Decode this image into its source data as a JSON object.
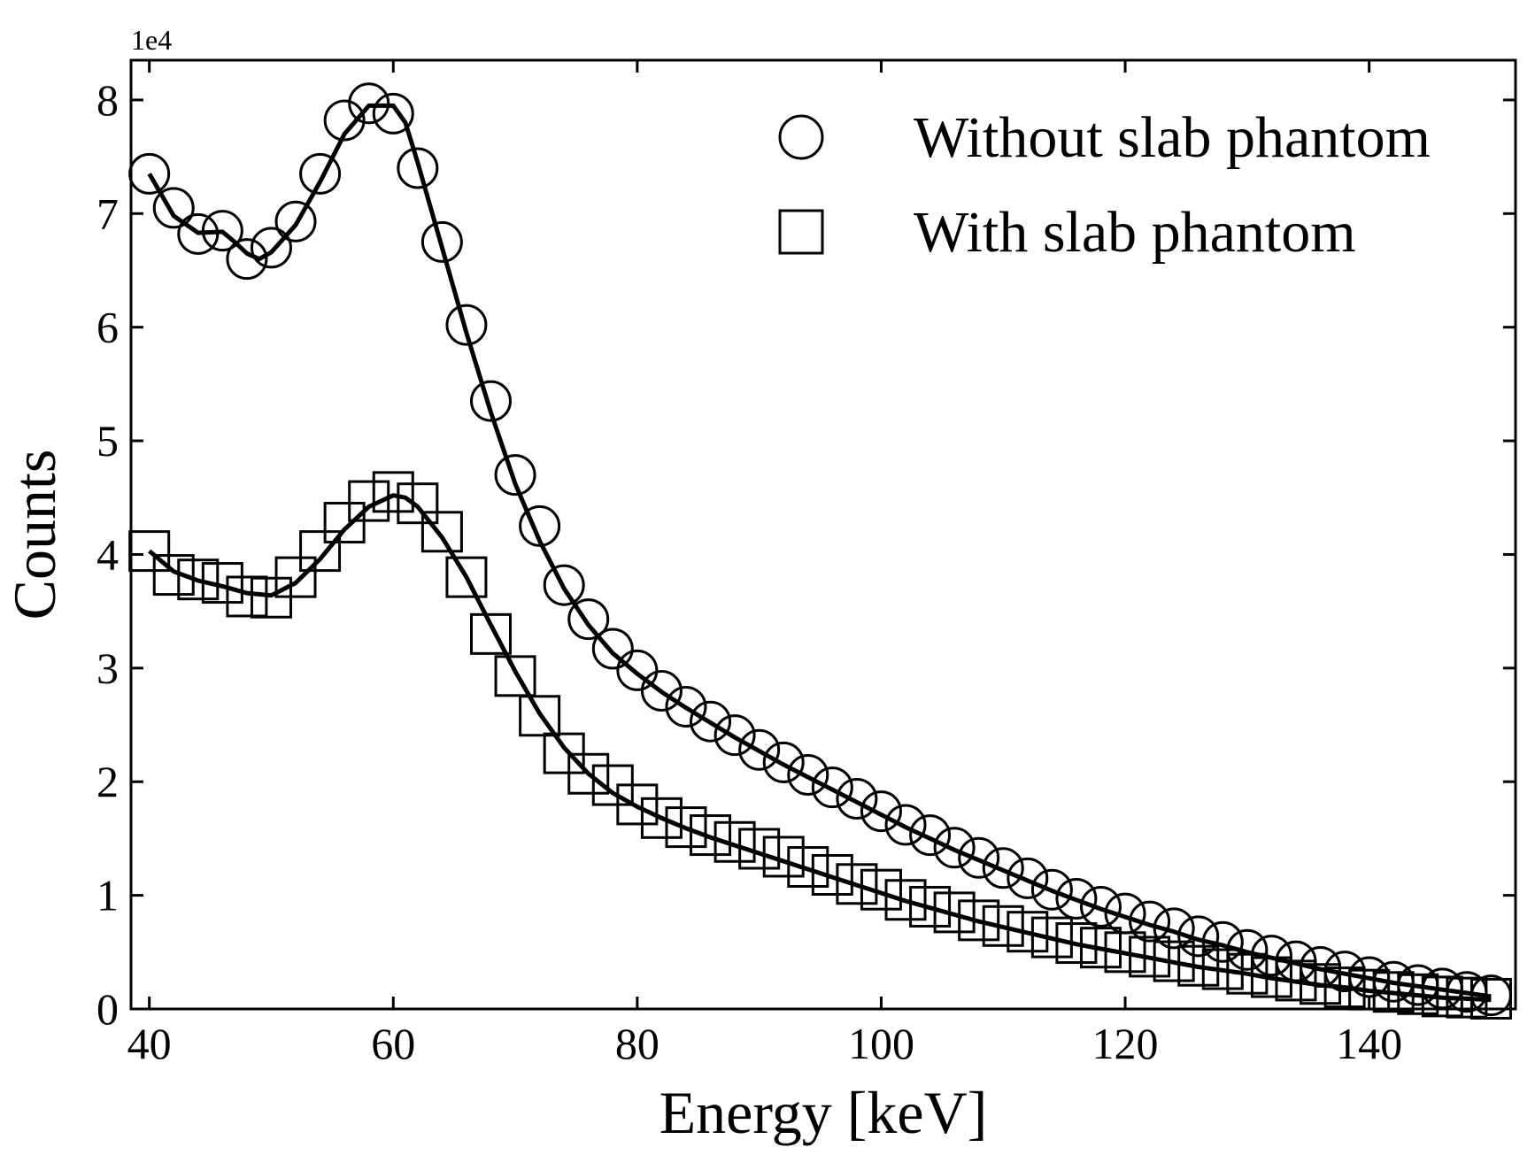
{
  "chart_data": {
    "type": "scatter",
    "title": "",
    "xlabel": "Energy [keV]",
    "ylabel": "Counts",
    "y_scale_label": "1e4",
    "xlim": [
      38.5,
      152
    ],
    "ylim": [
      0,
      8.35
    ],
    "x_ticks": [
      40,
      60,
      80,
      100,
      120,
      140
    ],
    "y_ticks": [
      0,
      1,
      2,
      3,
      4,
      5,
      6,
      7,
      8
    ],
    "legend_position": "top-right",
    "series": [
      {
        "name": "Without slab phantom",
        "marker": "circle",
        "points": [
          [
            40,
            7.35
          ],
          [
            42,
            7.05
          ],
          [
            44,
            6.82
          ],
          [
            46,
            6.85
          ],
          [
            48,
            6.6
          ],
          [
            50,
            6.7
          ],
          [
            52,
            6.93
          ],
          [
            54,
            7.35
          ],
          [
            56,
            7.82
          ],
          [
            58,
            7.97
          ],
          [
            60,
            7.88
          ],
          [
            62,
            7.4
          ],
          [
            64,
            6.75
          ],
          [
            66,
            6.02
          ],
          [
            68,
            5.35
          ],
          [
            70,
            4.7
          ],
          [
            72,
            4.25
          ],
          [
            74,
            3.73
          ],
          [
            76,
            3.43
          ],
          [
            78,
            3.17
          ],
          [
            80,
            2.98
          ],
          [
            82,
            2.8
          ],
          [
            84,
            2.66
          ],
          [
            86,
            2.53
          ],
          [
            88,
            2.41
          ],
          [
            90,
            2.28
          ],
          [
            92,
            2.17
          ],
          [
            94,
            2.06
          ],
          [
            96,
            1.95
          ],
          [
            98,
            1.85
          ],
          [
            100,
            1.74
          ],
          [
            102,
            1.62
          ],
          [
            104,
            1.53
          ],
          [
            106,
            1.42
          ],
          [
            108,
            1.33
          ],
          [
            110,
            1.24
          ],
          [
            112,
            1.15
          ],
          [
            114,
            1.05
          ],
          [
            116,
            0.97
          ],
          [
            118,
            0.9
          ],
          [
            120,
            0.84
          ],
          [
            122,
            0.77
          ],
          [
            124,
            0.71
          ],
          [
            126,
            0.64
          ],
          [
            128,
            0.59
          ],
          [
            130,
            0.52
          ],
          [
            132,
            0.47
          ],
          [
            134,
            0.42
          ],
          [
            136,
            0.37
          ],
          [
            138,
            0.33
          ],
          [
            140,
            0.28
          ],
          [
            142,
            0.24
          ],
          [
            144,
            0.21
          ],
          [
            146,
            0.18
          ],
          [
            148,
            0.15
          ],
          [
            150,
            0.12
          ]
        ],
        "fit": [
          [
            40,
            7.35
          ],
          [
            42,
            6.98
          ],
          [
            44,
            6.83
          ],
          [
            46,
            6.84
          ],
          [
            47,
            6.75
          ],
          [
            48,
            6.65
          ],
          [
            49,
            6.6
          ],
          [
            50,
            6.66
          ],
          [
            52,
            6.9
          ],
          [
            54,
            7.28
          ],
          [
            56,
            7.7
          ],
          [
            58,
            7.95
          ],
          [
            60,
            7.95
          ],
          [
            61,
            7.8
          ],
          [
            62,
            7.45
          ],
          [
            64,
            6.7
          ],
          [
            66,
            5.95
          ],
          [
            68,
            5.25
          ],
          [
            70,
            4.62
          ],
          [
            72,
            4.12
          ],
          [
            74,
            3.7
          ],
          [
            76,
            3.38
          ],
          [
            78,
            3.13
          ],
          [
            80,
            2.95
          ],
          [
            82,
            2.79
          ],
          [
            84,
            2.65
          ],
          [
            86,
            2.52
          ],
          [
            88,
            2.39
          ],
          [
            90,
            2.27
          ],
          [
            92,
            2.15
          ],
          [
            94,
            2.04
          ],
          [
            96,
            1.93
          ],
          [
            98,
            1.82
          ],
          [
            100,
            1.71
          ],
          [
            102,
            1.6
          ],
          [
            104,
            1.5
          ],
          [
            106,
            1.4
          ],
          [
            108,
            1.31
          ],
          [
            110,
            1.22
          ],
          [
            112,
            1.13
          ],
          [
            114,
            1.04
          ],
          [
            116,
            0.96
          ],
          [
            118,
            0.88
          ],
          [
            120,
            0.81
          ],
          [
            122,
            0.74
          ],
          [
            124,
            0.68
          ],
          [
            126,
            0.61
          ],
          [
            128,
            0.56
          ],
          [
            130,
            0.5
          ],
          [
            132,
            0.45
          ],
          [
            134,
            0.4
          ],
          [
            136,
            0.35
          ],
          [
            138,
            0.31
          ],
          [
            140,
            0.27
          ],
          [
            142,
            0.23
          ],
          [
            144,
            0.2
          ],
          [
            146,
            0.17
          ],
          [
            148,
            0.14
          ],
          [
            150,
            0.11
          ]
        ]
      },
      {
        "name": "With slab phantom",
        "marker": "square",
        "points": [
          [
            40,
            4.03
          ],
          [
            42,
            3.82
          ],
          [
            44,
            3.78
          ],
          [
            46,
            3.75
          ],
          [
            48,
            3.63
          ],
          [
            50,
            3.62
          ],
          [
            52,
            3.8
          ],
          [
            54,
            4.03
          ],
          [
            56,
            4.28
          ],
          [
            58,
            4.47
          ],
          [
            60,
            4.55
          ],
          [
            62,
            4.45
          ],
          [
            64,
            4.2
          ],
          [
            66,
            3.8
          ],
          [
            68,
            3.3
          ],
          [
            70,
            2.93
          ],
          [
            72,
            2.58
          ],
          [
            74,
            2.25
          ],
          [
            76,
            2.07
          ],
          [
            78,
            1.97
          ],
          [
            80,
            1.8
          ],
          [
            82,
            1.68
          ],
          [
            84,
            1.6
          ],
          [
            86,
            1.53
          ],
          [
            88,
            1.47
          ],
          [
            90,
            1.41
          ],
          [
            92,
            1.34
          ],
          [
            94,
            1.25
          ],
          [
            96,
            1.18
          ],
          [
            98,
            1.1
          ],
          [
            100,
            1.05
          ],
          [
            102,
            0.96
          ],
          [
            104,
            0.9
          ],
          [
            106,
            0.85
          ],
          [
            108,
            0.78
          ],
          [
            110,
            0.73
          ],
          [
            112,
            0.68
          ],
          [
            114,
            0.63
          ],
          [
            116,
            0.58
          ],
          [
            118,
            0.54
          ],
          [
            120,
            0.5
          ],
          [
            122,
            0.46
          ],
          [
            124,
            0.42
          ],
          [
            126,
            0.38
          ],
          [
            128,
            0.35
          ],
          [
            130,
            0.31
          ],
          [
            132,
            0.28
          ],
          [
            134,
            0.25
          ],
          [
            136,
            0.22
          ],
          [
            138,
            0.19
          ],
          [
            140,
            0.17
          ],
          [
            142,
            0.15
          ],
          [
            144,
            0.13
          ],
          [
            146,
            0.11
          ],
          [
            148,
            0.1
          ],
          [
            150,
            0.09
          ]
        ],
        "fit": [
          [
            40,
            4.03
          ],
          [
            42,
            3.85
          ],
          [
            44,
            3.77
          ],
          [
            46,
            3.72
          ],
          [
            48,
            3.66
          ],
          [
            50,
            3.64
          ],
          [
            52,
            3.75
          ],
          [
            54,
            3.96
          ],
          [
            56,
            4.22
          ],
          [
            58,
            4.42
          ],
          [
            60,
            4.52
          ],
          [
            61,
            4.5
          ],
          [
            62,
            4.42
          ],
          [
            64,
            4.15
          ],
          [
            66,
            3.8
          ],
          [
            68,
            3.38
          ],
          [
            70,
            2.97
          ],
          [
            72,
            2.6
          ],
          [
            74,
            2.3
          ],
          [
            76,
            2.07
          ],
          [
            78,
            1.9
          ],
          [
            80,
            1.78
          ],
          [
            82,
            1.68
          ],
          [
            84,
            1.59
          ],
          [
            86,
            1.51
          ],
          [
            88,
            1.44
          ],
          [
            90,
            1.37
          ],
          [
            92,
            1.3
          ],
          [
            94,
            1.23
          ],
          [
            96,
            1.16
          ],
          [
            98,
            1.09
          ],
          [
            100,
            1.02
          ],
          [
            102,
            0.95
          ],
          [
            104,
            0.89
          ],
          [
            106,
            0.83
          ],
          [
            108,
            0.77
          ],
          [
            110,
            0.72
          ],
          [
            112,
            0.67
          ],
          [
            114,
            0.62
          ],
          [
            116,
            0.57
          ],
          [
            118,
            0.53
          ],
          [
            120,
            0.49
          ],
          [
            122,
            0.45
          ],
          [
            124,
            0.41
          ],
          [
            126,
            0.37
          ],
          [
            128,
            0.34
          ],
          [
            130,
            0.31
          ],
          [
            132,
            0.27
          ],
          [
            134,
            0.24
          ],
          [
            136,
            0.21
          ],
          [
            138,
            0.19
          ],
          [
            140,
            0.16
          ],
          [
            142,
            0.14
          ],
          [
            144,
            0.12
          ],
          [
            146,
            0.1
          ],
          [
            148,
            0.09
          ],
          [
            150,
            0.08
          ]
        ]
      }
    ]
  }
}
